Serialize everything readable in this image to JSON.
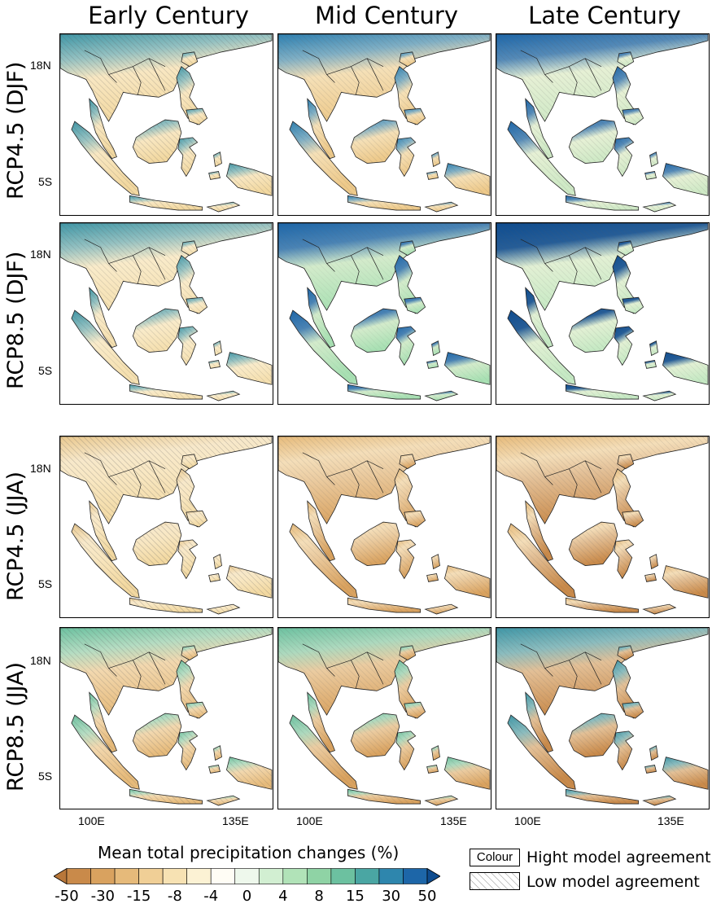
{
  "columns": [
    "Early Century",
    "Mid Century",
    "Late Century"
  ],
  "rows": [
    "RCP4.5 (DJF)",
    "RCP8.5 (DJF)",
    "RCP4.5 (JJA)",
    "RCP8.5 (JJA)"
  ],
  "lat_ticks": [
    "18N",
    "5S"
  ],
  "lon_ticks": [
    "100E",
    "135E"
  ],
  "legend": {
    "title": "Mean total precipitation changes (%)",
    "labels": [
      "-50",
      "-30",
      "-15",
      "-8",
      "-4",
      "0",
      "4",
      "8",
      "15",
      "30",
      "50"
    ],
    "colors": [
      "#b8773a",
      "#c98a4a",
      "#d9a25f",
      "#e6ba7a",
      "#f0cf96",
      "#f7e2b3",
      "#fcf2d4",
      "#fffdf5",
      "#eef8ec",
      "#d2efd2",
      "#b1e3b8",
      "#8fd3a5",
      "#6cc1a0",
      "#4aa6a3",
      "#2e86ad",
      "#1d66a8",
      "#0e4c8f"
    ],
    "high_agreement": "Colour",
    "high_agreement_label": "Hight model agreement",
    "low_agreement_label": "Low model agreement"
  },
  "panels": [
    {
      "row": 0,
      "col": 0,
      "north_tint": "#3f96a6",
      "north_level": 0.55,
      "south_tint": "#f2d8a0",
      "hatch": 0.7
    },
    {
      "row": 0,
      "col": 1,
      "north_tint": "#2d7fb0",
      "north_level": 0.6,
      "south_tint": "#edc98a",
      "hatch": 0.5
    },
    {
      "row": 0,
      "col": 2,
      "north_tint": "#1d66a8",
      "north_level": 0.75,
      "south_tint": "#cfe9c6",
      "hatch": 0.5
    },
    {
      "row": 1,
      "col": 0,
      "north_tint": "#3f96a6",
      "north_level": 0.55,
      "south_tint": "#f5e0b0",
      "hatch": 0.6
    },
    {
      "row": 1,
      "col": 1,
      "north_tint": "#1d66a8",
      "north_level": 0.8,
      "south_tint": "#a8e0b3",
      "hatch": 0.3
    },
    {
      "row": 1,
      "col": 2,
      "north_tint": "#0e4c8f",
      "north_level": 0.9,
      "south_tint": "#c6e9c4",
      "hatch": 0.4
    },
    {
      "row": 2,
      "col": 0,
      "north_tint": "#e9c88e",
      "north_level": 0.3,
      "south_tint": "#f2d8a0",
      "hatch": 0.8
    },
    {
      "row": 2,
      "col": 1,
      "north_tint": "#e6ba7a",
      "north_level": 0.4,
      "south_tint": "#d9a25f",
      "hatch": 0.5
    },
    {
      "row": 2,
      "col": 2,
      "north_tint": "#e6ba7a",
      "north_level": 0.4,
      "south_tint": "#c98a4a",
      "hatch": 0.5
    },
    {
      "row": 3,
      "col": 0,
      "north_tint": "#6cc1a0",
      "north_level": 0.5,
      "south_tint": "#e6ba7a",
      "hatch": 0.7
    },
    {
      "row": 3,
      "col": 1,
      "north_tint": "#6cc1a0",
      "north_level": 0.55,
      "south_tint": "#d9a25f",
      "hatch": 0.5
    },
    {
      "row": 3,
      "col": 2,
      "north_tint": "#3f96a6",
      "north_level": 0.6,
      "south_tint": "#c98a4a",
      "hatch": 0.5
    }
  ]
}
